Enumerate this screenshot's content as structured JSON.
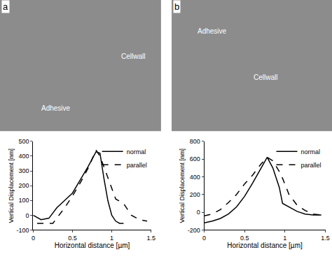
{
  "chart_data": [
    {
      "type": "line",
      "title": "a",
      "annotations": [
        {
          "text": "Cellwall"
        },
        {
          "text": "Adhesive"
        }
      ],
      "x_label": "Horizontal distance [µm]",
      "y_label": "Vertical Displacement [nm]",
      "xlim": [
        0,
        1.5
      ],
      "xticks": [
        0,
        0.5,
        1,
        1.5
      ],
      "ylim": [
        -100,
        500
      ],
      "yticks": [
        -100,
        0,
        100,
        200,
        300,
        400,
        500
      ],
      "grid": false,
      "legend": "top right",
      "series": [
        {
          "name": "normal",
          "color": "#000000",
          "line_style": "solid",
          "x": [
            0,
            0.1,
            0.2,
            0.3,
            0.4,
            0.5,
            0.6,
            0.7,
            0.8,
            0.85,
            0.9,
            0.95,
            1.0,
            1.05,
            1.1,
            1.15
          ],
          "values": [
            0,
            -30,
            -20,
            50,
            100,
            150,
            240,
            330,
            430,
            420,
            250,
            100,
            0,
            -40,
            -55,
            -55
          ]
        },
        {
          "name": "parallel",
          "color": "#000000",
          "line_style": "dashed",
          "x": [
            0.05,
            0.25,
            0.3,
            0.4,
            0.5,
            0.6,
            0.7,
            0.8,
            0.85,
            0.95,
            1.05,
            1.15,
            1.25,
            1.35,
            1.45
          ],
          "values": [
            -55,
            -55,
            -20,
            50,
            130,
            220,
            320,
            440,
            400,
            250,
            110,
            80,
            0,
            -30,
            -40
          ]
        }
      ]
    },
    {
      "type": "line",
      "title": "b",
      "annotations": [
        {
          "text": "Adhesive"
        },
        {
          "text": "Cellwall"
        }
      ],
      "x_label": "Horizontal distance [µm]",
      "y_label": "Vertical Displacement [nm]",
      "xlim": [
        0,
        1.5
      ],
      "xticks": [
        0,
        0.5,
        1,
        1.5
      ],
      "ylim": [
        -200,
        800
      ],
      "yticks": [
        -200,
        0,
        200,
        400,
        600,
        800
      ],
      "grid": false,
      "legend": "top right",
      "series": [
        {
          "name": "normal",
          "color": "#000000",
          "line_style": "solid",
          "x": [
            0,
            0.1,
            0.2,
            0.3,
            0.4,
            0.5,
            0.6,
            0.7,
            0.78,
            0.85,
            0.93,
            0.97,
            1.05,
            1.15,
            1.25,
            1.35,
            1.45
          ],
          "values": [
            -120,
            -100,
            -70,
            -20,
            60,
            180,
            330,
            490,
            620,
            500,
            280,
            100,
            60,
            10,
            -20,
            -30,
            -30
          ]
        },
        {
          "name": "parallel",
          "color": "#000000",
          "line_style": "dashed",
          "x": [
            0,
            0.1,
            0.2,
            0.3,
            0.4,
            0.5,
            0.6,
            0.7,
            0.78,
            0.85,
            0.95,
            1.05,
            1.15,
            1.25,
            1.35,
            1.45
          ],
          "values": [
            -40,
            -20,
            30,
            110,
            200,
            320,
            420,
            540,
            620,
            580,
            430,
            200,
            80,
            20,
            -20,
            -30
          ]
        }
      ]
    }
  ]
}
